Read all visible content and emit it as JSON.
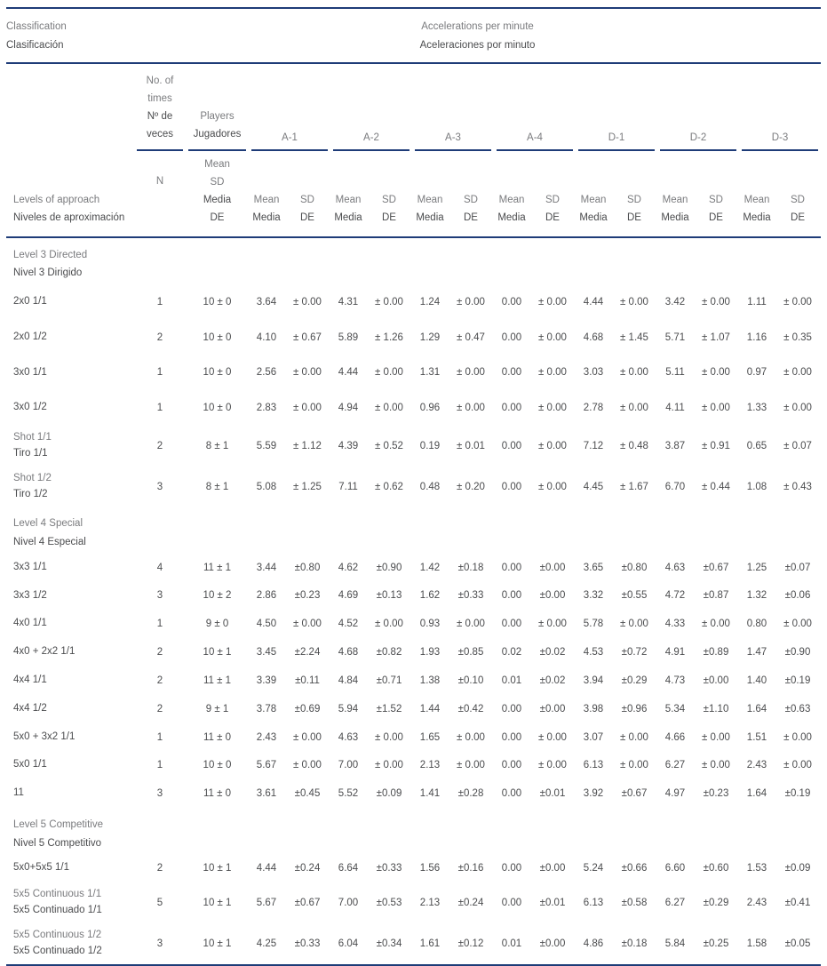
{
  "header": {
    "classification_en": "Classification",
    "classification_es": "Clasificación",
    "accelerations_en": "Accelerations per minute",
    "accelerations_es": "Aceleraciones por minuto",
    "no_of_times_lines": [
      "No. of",
      "times",
      "Nº de",
      "veces"
    ],
    "players_lines": [
      "Players",
      "Jugadores"
    ],
    "groups": [
      "A-1",
      "A-2",
      "A-3",
      "A-4",
      "D-1",
      "D-2",
      "D-3"
    ],
    "levels_of_approach_en": "Levels of approach",
    "levels_of_approach_es": "Niveles de aproximación",
    "n_label": "N",
    "players_sub_lines": [
      "Mean",
      "SD",
      "Media",
      "DE"
    ],
    "mean_en": "Mean",
    "mean_es": "Media",
    "sd_en": "SD",
    "sd_es": "DE"
  },
  "line_color": "#1e3c78",
  "rows": [
    {
      "type": "section",
      "en": "Level 3 Directed",
      "es": "Nivel 3 Dirigido"
    },
    {
      "type": "data",
      "label": [
        "2x0 1/1"
      ],
      "n": "1",
      "players": "10 ± 0",
      "values": [
        "3.64",
        "± 0.00",
        "4.31",
        "± 0.00",
        "1.24",
        "± 0.00",
        "0.00",
        "± 0.00",
        "4.44",
        "± 0.00",
        "3.42",
        "± 0.00",
        "1.11",
        "± 0.00"
      ]
    },
    {
      "type": "data",
      "label": [
        "2x0 1/2"
      ],
      "n": "2",
      "players": "10 ± 0",
      "values": [
        "4.10",
        "± 0.67",
        "5.89",
        "± 1.26",
        "1.29",
        "± 0.47",
        "0.00",
        "± 0.00",
        "4.68",
        "± 1.45",
        "5.71",
        "± 1.07",
        "1.16",
        "± 0.35"
      ]
    },
    {
      "type": "data",
      "label": [
        "3x0 1/1"
      ],
      "n": "1",
      "players": "10 ± 0",
      "values": [
        "2.56",
        "± 0.00",
        "4.44",
        "± 0.00",
        "1.31",
        "± 0.00",
        "0.00",
        "± 0.00",
        "3.03",
        "± 0.00",
        "5.11",
        "± 0.00",
        "0.97",
        "± 0.00"
      ]
    },
    {
      "type": "data",
      "label": [
        "3x0 1/2"
      ],
      "n": "1",
      "players": "10 ± 0",
      "values": [
        "2.83",
        "± 0.00",
        "4.94",
        "± 0.00",
        "0.96",
        "± 0.00",
        "0.00",
        "± 0.00",
        "2.78",
        "± 0.00",
        "4.11",
        "± 0.00",
        "1.33",
        "± 0.00"
      ]
    },
    {
      "type": "data",
      "label": [
        "Shot 1/1",
        "Tiro 1/1"
      ],
      "n": "2",
      "players": "8 ± 1",
      "values": [
        "5.59",
        "± 1.12",
        "4.39",
        "± 0.52",
        "0.19",
        "± 0.01",
        "0.00",
        "± 0.00",
        "7.12",
        "± 0.48",
        "3.87",
        "± 0.91",
        "0.65",
        "± 0.07"
      ]
    },
    {
      "type": "data",
      "label": [
        "Shot 1/2",
        "Tiro 1/2"
      ],
      "n": "3",
      "players": "8 ± 1",
      "values": [
        "5.08",
        "± 1.25",
        "7.11",
        "± 0.62",
        "0.48",
        "± 0.20",
        "0.00",
        "± 0.00",
        "4.45",
        "± 1.67",
        "6.70",
        "± 0.44",
        "1.08",
        "± 0.43"
      ]
    },
    {
      "type": "section",
      "en": "Level 4 Special",
      "es": "Nivel 4 Especial"
    },
    {
      "type": "data",
      "label": [
        "3x3 1/1"
      ],
      "n": "4",
      "players": "11 ± 1",
      "values": [
        "3.44",
        "±0.80",
        "4.62",
        "±0.90",
        "1.42",
        "±0.18",
        "0.00",
        "±0.00",
        "3.65",
        "±0.80",
        "4.63",
        "±0.67",
        "1.25",
        "±0.07"
      ]
    },
    {
      "type": "data",
      "label": [
        "3x3 1/2"
      ],
      "n": "3",
      "players": "10 ± 2",
      "values": [
        "2.86",
        "±0.23",
        "4.69",
        "±0.13",
        "1.62",
        "±0.33",
        "0.00",
        "±0.00",
        "3.32",
        "±0.55",
        "4.72",
        "±0.87",
        "1.32",
        "±0.06"
      ]
    },
    {
      "type": "data",
      "label": [
        "4x0 1/1"
      ],
      "n": "1",
      "players": "9 ± 0",
      "values": [
        "4.50",
        "± 0.00",
        "4.52",
        "± 0.00",
        "0.93",
        "± 0.00",
        "0.00",
        "± 0.00",
        "5.78",
        "± 0.00",
        "4.33",
        "± 0.00",
        "0.80",
        "± 0.00"
      ]
    },
    {
      "type": "data",
      "label": [
        "4x0 + 2x2 1/1"
      ],
      "n": "2",
      "players": "10 ± 1",
      "values": [
        "3.45",
        "±2.24",
        "4.68",
        "±0.82",
        "1.93",
        "±0.85",
        "0.02",
        "±0.02",
        "4.53",
        "±0.72",
        "4.91",
        "±0.89",
        "1.47",
        "±0.90"
      ]
    },
    {
      "type": "data",
      "label": [
        "4x4 1/1"
      ],
      "n": "2",
      "players": "11 ± 1",
      "values": [
        "3.39",
        "±0.11",
        "4.84",
        "±0.71",
        "1.38",
        "±0.10",
        "0.01",
        "±0.02",
        "3.94",
        "±0.29",
        "4.73",
        "±0.00",
        "1.40",
        "±0.19"
      ]
    },
    {
      "type": "data",
      "label": [
        "4x4 1/2"
      ],
      "n": "2",
      "players": "9 ± 1",
      "values": [
        "3.78",
        "±0.69",
        "5.94",
        "±1.52",
        "1.44",
        "±0.42",
        "0.00",
        "±0.00",
        "3.98",
        "±0.96",
        "5.34",
        "±1.10",
        "1.64",
        "±0.63"
      ]
    },
    {
      "type": "data",
      "label": [
        "5x0 + 3x2 1/1"
      ],
      "n": "1",
      "players": "11 ± 0",
      "values": [
        "2.43",
        "± 0.00",
        "4.63",
        "± 0.00",
        "1.65",
        "± 0.00",
        "0.00",
        "± 0.00",
        "3.07",
        "± 0.00",
        "4.66",
        "± 0.00",
        "1.51",
        "± 0.00"
      ]
    },
    {
      "type": "data",
      "label": [
        "5x0 1/1"
      ],
      "n": "1",
      "players": "10 ± 0",
      "values": [
        "5.67",
        "± 0.00",
        "7.00",
        "± 0.00",
        "2.13",
        "± 0.00",
        "0.00",
        "± 0.00",
        "6.13",
        "± 0.00",
        "6.27",
        "± 0.00",
        "2.43",
        "± 0.00"
      ]
    },
    {
      "type": "data",
      "label": [
        "11"
      ],
      "n": "3",
      "players": "11 ± 0",
      "values": [
        "3.61",
        "±0.45",
        "5.52",
        "±0.09",
        "1.41",
        "±0.28",
        "0.00",
        "±0.01",
        "3.92",
        "±0.67",
        "4.97",
        "±0.23",
        "1.64",
        "±0.19"
      ]
    },
    {
      "type": "section",
      "en": "Level 5 Competitive",
      "es": "Nivel 5 Competitivo"
    },
    {
      "type": "data",
      "label": [
        "5x0+5x5 1/1"
      ],
      "n": "2",
      "players": "10 ± 1",
      "values": [
        "4.44",
        "±0.24",
        "6.64",
        "±0.33",
        "1.56",
        "±0.16",
        "0.00",
        "±0.00",
        "5.24",
        "±0.66",
        "6.60",
        "±0.60",
        "1.53",
        "±0.09"
      ]
    },
    {
      "type": "data",
      "label": [
        "5x5 Continuous 1/1",
        "5x5 Continuado 1/1"
      ],
      "n": "5",
      "players": "10 ± 1",
      "values": [
        "5.67",
        "±0.67",
        "7.00",
        "±0.53",
        "2.13",
        "±0.24",
        "0.00",
        "±0.01",
        "6.13",
        "±0.58",
        "6.27",
        "±0.29",
        "2.43",
        "±0.41"
      ]
    },
    {
      "type": "data",
      "label": [
        "5x5 Continuous 1/2",
        "5x5 Continuado 1/2"
      ],
      "n": "3",
      "players": "10 ± 1",
      "values": [
        "4.25",
        "±0.33",
        "6.04",
        "±0.34",
        "1.61",
        "±0.12",
        "0.01",
        "±0.00",
        "4.86",
        "±0.18",
        "5.84",
        "±0.25",
        "1.58",
        "±0.05"
      ]
    }
  ]
}
